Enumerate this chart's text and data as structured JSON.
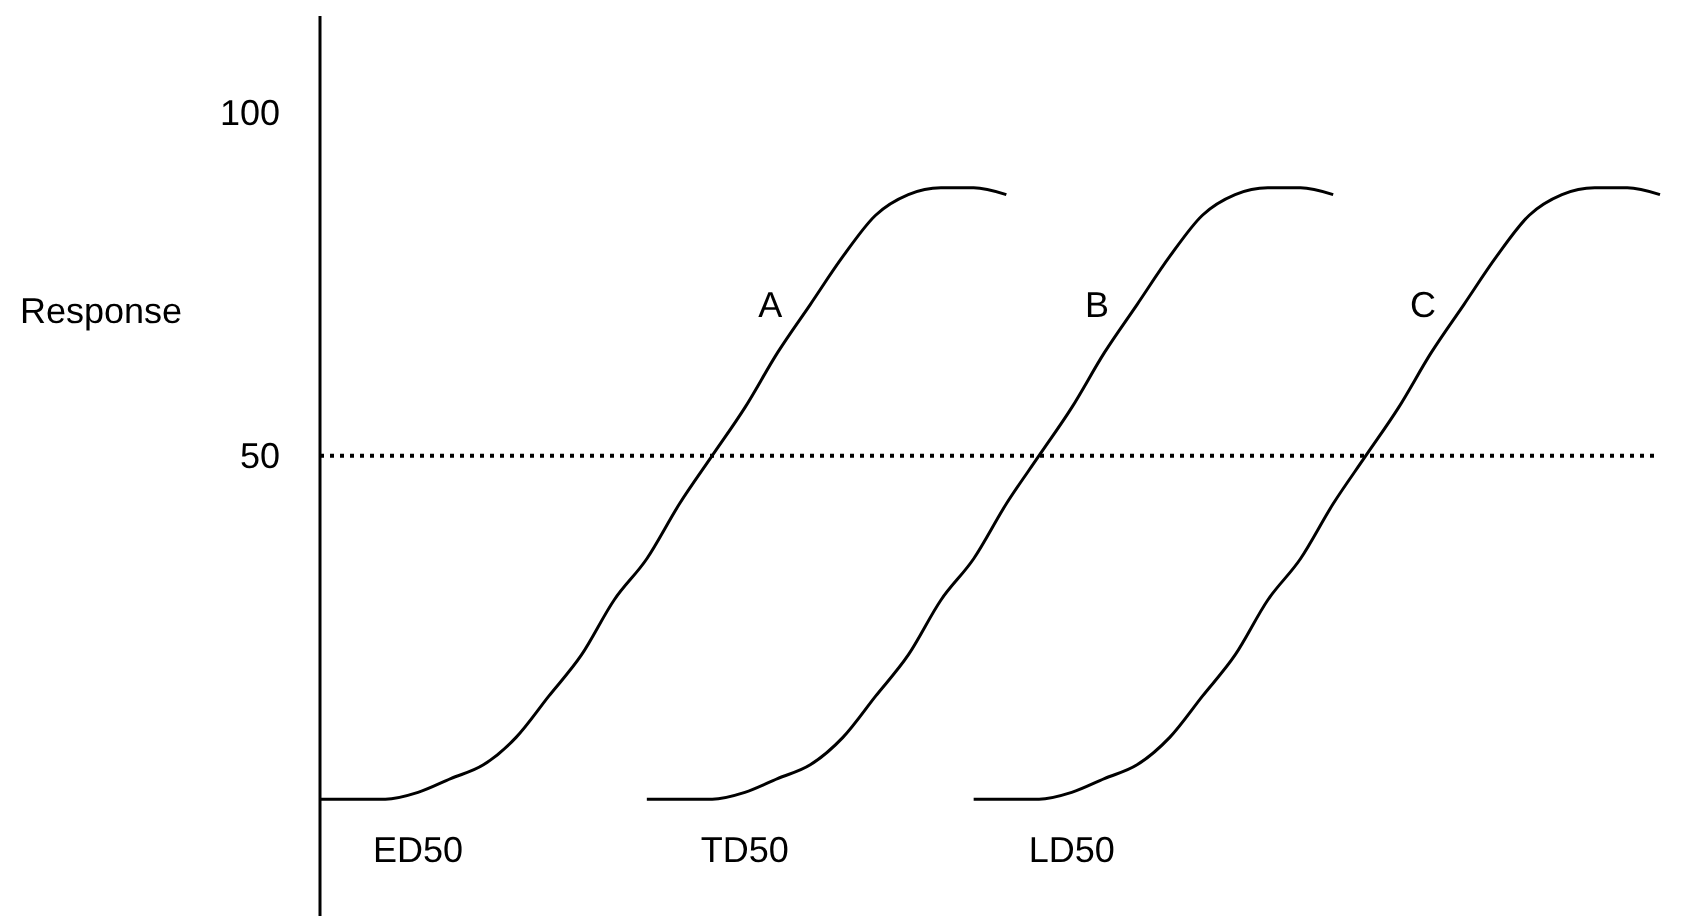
{
  "chart_data": {
    "type": "line",
    "ylabel": "Response",
    "categories": [
      null,
      null,
      null,
      null,
      null,
      null,
      null,
      null,
      null,
      null,
      null,
      null,
      null,
      null,
      null,
      null,
      null,
      null,
      null,
      null,
      null,
      null,
      null,
      null,
      null,
      null,
      null,
      null,
      null,
      null,
      null,
      null,
      null,
      null,
      null,
      null,
      null,
      null,
      null,
      null,
      null,
      null
    ],
    "series": [
      {
        "name": "A",
        "color": "#000000",
        "values": [
          0,
          0,
          0,
          1,
          3,
          5,
          9,
          15,
          21,
          29,
          35,
          43,
          50,
          57,
          65,
          72,
          79,
          85,
          88,
          89,
          89,
          88,
          null,
          null,
          null,
          null,
          null,
          null,
          null,
          null,
          null,
          null,
          null,
          null,
          null,
          null,
          null,
          null,
          null,
          null,
          null,
          null
        ]
      },
      {
        "name": "B",
        "color": "#000000",
        "values": [
          null,
          null,
          null,
          null,
          null,
          null,
          null,
          null,
          null,
          null,
          0,
          0,
          0,
          1,
          3,
          5,
          9,
          15,
          21,
          29,
          35,
          43,
          50,
          57,
          65,
          72,
          79,
          85,
          88,
          89,
          89,
          88,
          null,
          null,
          null,
          null,
          null,
          null,
          null,
          null,
          null,
          null
        ]
      },
      {
        "name": "C",
        "color": "#000000",
        "values": [
          null,
          null,
          null,
          null,
          null,
          null,
          null,
          null,
          null,
          null,
          null,
          null,
          null,
          null,
          null,
          null,
          null,
          null,
          null,
          null,
          0,
          0,
          0,
          1,
          3,
          5,
          9,
          15,
          21,
          29,
          35,
          43,
          50,
          57,
          65,
          72,
          79,
          85,
          88,
          89,
          89,
          88
        ]
      }
    ],
    "annotations": [
      "ED50",
      "TD50",
      "LD50"
    ],
    "ylim": [
      -17,
      114
    ],
    "yticks": [
      50,
      100
    ],
    "tick_labels": "y",
    "grid": false,
    "legend": false,
    "marker": "none",
    "line_style": "solid",
    "ref_lines": [
      {
        "axis": "y",
        "value": 50,
        "color": "#000000",
        "line_style": "dotted"
      }
    ]
  }
}
